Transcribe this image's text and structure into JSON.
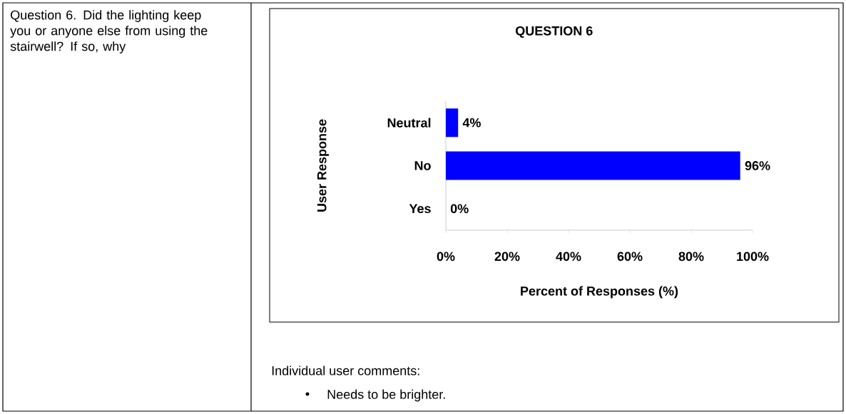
{
  "chart_data": {
    "type": "bar",
    "orientation": "horizontal",
    "title": "QUESTION 6",
    "xlabel": "Percent of Responses (%)",
    "ylabel": "User Response",
    "categories": [
      "Neutral",
      "No",
      "Yes"
    ],
    "values": [
      4,
      96,
      0
    ],
    "value_labels": [
      "4%",
      "96%",
      "0%"
    ],
    "color": "#0000ff",
    "xlim": [
      0,
      100
    ],
    "xticks": [
      {
        "value": 0,
        "label": "0%"
      },
      {
        "value": 20,
        "label": "20%"
      },
      {
        "value": 40,
        "label": "40%"
      },
      {
        "value": 60,
        "label": "60%"
      },
      {
        "value": 80,
        "label": "80%"
      },
      {
        "value": 100,
        "label": "100%"
      }
    ],
    "grid": false,
    "annotations": [
      "Question 6. Did the lighting keep you or anyone else from using the stairwell? If so, why",
      "Individual user comments:",
      "Needs to be brighter."
    ]
  }
}
